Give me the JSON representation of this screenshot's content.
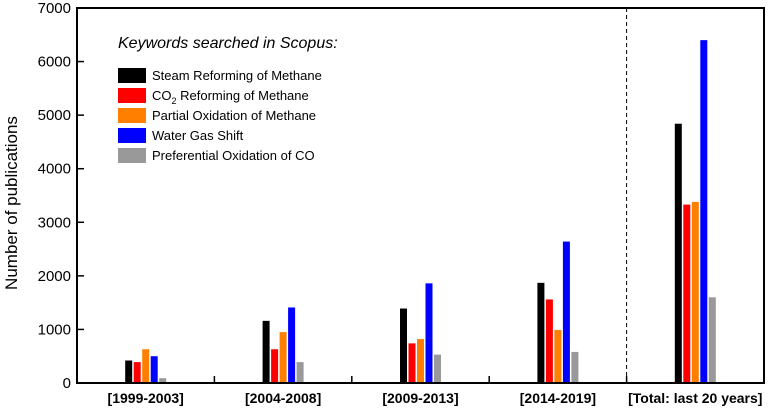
{
  "chart_data": {
    "type": "bar",
    "ylabel": "Number of publications",
    "ylim": [
      0,
      7000
    ],
    "yticks": [
      0,
      1000,
      2000,
      3000,
      4000,
      5000,
      6000,
      7000
    ],
    "ytick_labels": [
      "0",
      "1000",
      "2000",
      "3000",
      "4000",
      "5000",
      "6000",
      "7000"
    ],
    "categories": [
      "[1999-2003]",
      "[2004-2008]",
      "[2009-2013]",
      "[2014-2019]",
      "[Total: last 20 years]"
    ],
    "legend": {
      "title": "Keywords searched in Scopus:",
      "placement": "top-left"
    },
    "series": [
      {
        "name": "Steam Reforming of Methane",
        "label_main": "Steam Reforming of Methane",
        "color": "#000000",
        "values": [
          420,
          1160,
          1390,
          1870,
          4840
        ]
      },
      {
        "name": "CO2 Reforming of Methane",
        "label_main": "CO",
        "label_sub": "2",
        "label_rest": " Reforming of Methane",
        "color": "#ff0000",
        "values": [
          390,
          630,
          740,
          1560,
          3330
        ]
      },
      {
        "name": "Partial Oxidation of Methane",
        "label_main": "Partial Oxidation of Methane",
        "color": "#ff8000",
        "values": [
          630,
          950,
          820,
          990,
          3380
        ]
      },
      {
        "name": "Water Gas Shift",
        "label_main": "Water Gas Shift",
        "color": "#0000ff",
        "values": [
          500,
          1410,
          1860,
          2640,
          6400
        ]
      },
      {
        "name": "Preferential Oxidation of CO",
        "label_main": "Preferential Oxidation of CO",
        "color": "#999999",
        "values": [
          90,
          390,
          530,
          580,
          1600
        ]
      }
    ],
    "separator_line": "dashed line before last category",
    "grid": false
  }
}
